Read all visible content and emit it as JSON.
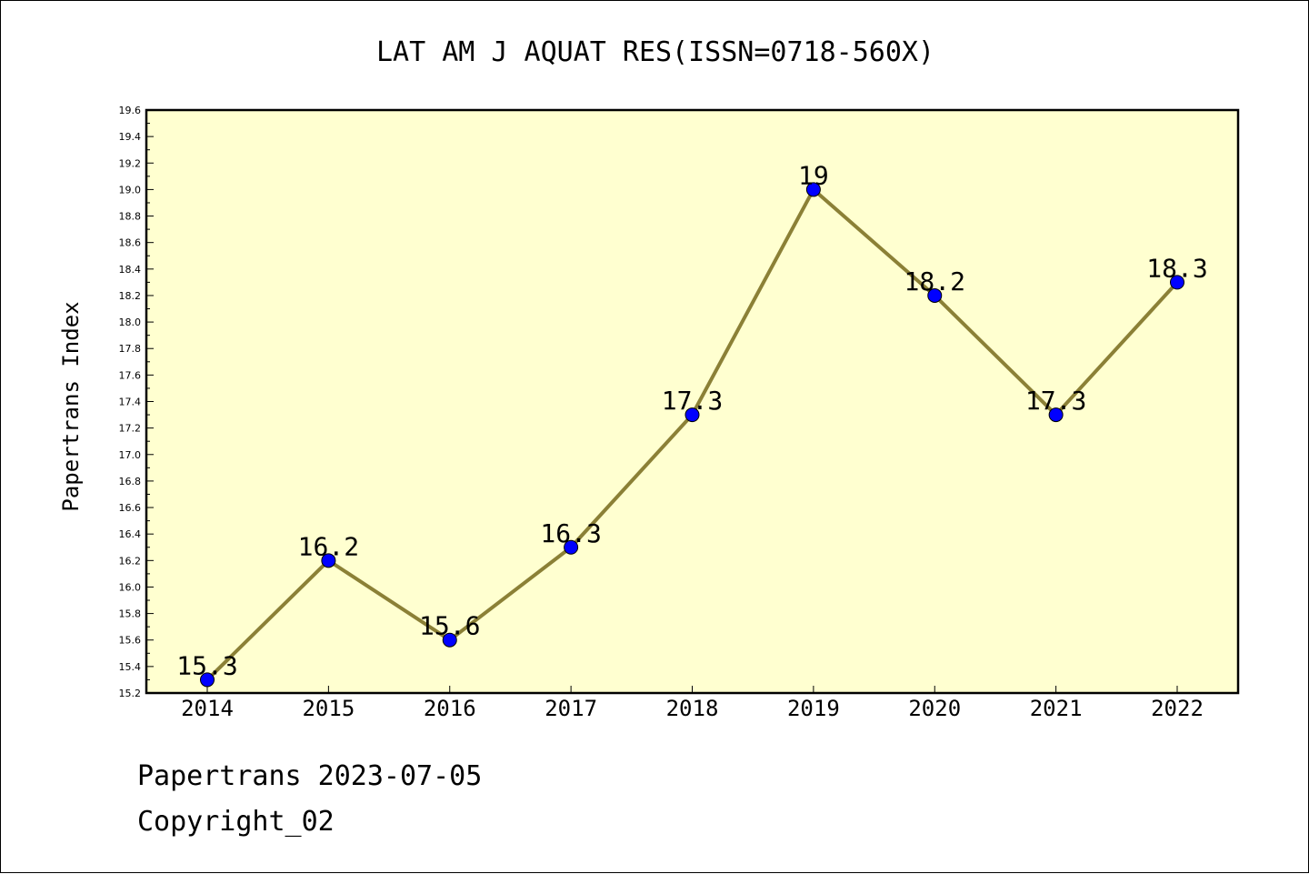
{
  "chart_data": {
    "type": "line",
    "title": "LAT AM J AQUAT RES(ISSN=0718-560X)",
    "xlabel": "",
    "ylabel": "Papertrans Index",
    "categories": [
      "2014",
      "2015",
      "2016",
      "2017",
      "2018",
      "2019",
      "2020",
      "2021",
      "2022"
    ],
    "series": [
      {
        "values": [
          15.3,
          16.2,
          15.6,
          16.3,
          17.3,
          19,
          18.2,
          17.3,
          18.3
        ]
      }
    ],
    "data_labels": [
      "15.3",
      "16.2",
      "15.6",
      "16.3",
      "17.3",
      "19",
      "18.2",
      "17.3",
      "18.3"
    ],
    "ylim": [
      15.2,
      19.6
    ],
    "yticks": [
      "15.2",
      "15.4",
      "15.6",
      "15.8",
      "16.0",
      "16.2",
      "16.4",
      "16.6",
      "16.8",
      "17.0",
      "17.2",
      "17.4",
      "17.6",
      "17.8",
      "18.0",
      "18.2",
      "18.4",
      "18.6",
      "18.8",
      "19.0",
      "19.2",
      "19.4",
      "19.6"
    ],
    "grid": false,
    "legend": "none",
    "colors": {
      "plot_background": "#ffffd0",
      "line": "#8b8036",
      "marker": "#0000ff"
    }
  },
  "footer": {
    "date_line": "Papertrans 2023-07-05",
    "copyright": "Copyright_02"
  }
}
